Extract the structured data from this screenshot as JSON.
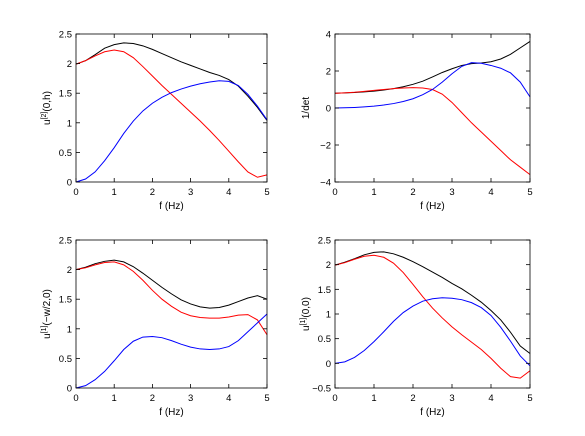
{
  "chart_data": [
    {
      "type": "line",
      "title": "",
      "xlabel": "f (Hz)",
      "ylabel": {
        "base": "u",
        "sup": "[2]",
        "rest": "(0,h)"
      },
      "xlim": [
        0,
        5
      ],
      "ylim": [
        0,
        2.5
      ],
      "xticks": [
        "0",
        "1",
        "2",
        "3",
        "4",
        "5"
      ],
      "yticks": [
        "0",
        "0.5",
        "1",
        "1.5",
        "2",
        "2.5"
      ],
      "grid": false,
      "series": [
        {
          "color": "#000000",
          "x": [
            0,
            0.25,
            0.5,
            0.75,
            1.0,
            1.25,
            1.5,
            1.75,
            2.0,
            2.25,
            2.5,
            2.75,
            3.0,
            3.25,
            3.5,
            3.75,
            4.0,
            4.25,
            4.5,
            4.75,
            5.0
          ],
          "y": [
            1.99,
            2.05,
            2.15,
            2.26,
            2.32,
            2.35,
            2.34,
            2.3,
            2.24,
            2.17,
            2.1,
            2.03,
            1.97,
            1.91,
            1.85,
            1.8,
            1.73,
            1.62,
            1.45,
            1.26,
            1.04
          ]
        },
        {
          "color": "#ff0000",
          "x": [
            0,
            0.25,
            0.5,
            0.75,
            1.0,
            1.25,
            1.5,
            1.75,
            2.0,
            2.25,
            2.5,
            2.75,
            3.0,
            3.25,
            3.5,
            3.75,
            4.0,
            4.25,
            4.5,
            4.75,
            5.0
          ],
          "y": [
            1.99,
            2.05,
            2.13,
            2.2,
            2.23,
            2.2,
            2.1,
            1.95,
            1.79,
            1.63,
            1.48,
            1.33,
            1.18,
            1.03,
            0.87,
            0.7,
            0.52,
            0.34,
            0.17,
            0.08,
            0.12
          ]
        },
        {
          "color": "#0000ff",
          "x": [
            0,
            0.25,
            0.5,
            0.75,
            1.0,
            1.25,
            1.5,
            1.75,
            2.0,
            2.25,
            2.5,
            2.75,
            3.0,
            3.25,
            3.5,
            3.75,
            4.0,
            4.25,
            4.5,
            4.75,
            5.0
          ],
          "y": [
            0.0,
            0.05,
            0.17,
            0.36,
            0.58,
            0.82,
            1.03,
            1.2,
            1.33,
            1.43,
            1.51,
            1.57,
            1.62,
            1.66,
            1.69,
            1.71,
            1.7,
            1.63,
            1.48,
            1.28,
            1.05
          ]
        }
      ]
    },
    {
      "type": "line",
      "title": "",
      "xlabel": "f (Hz)",
      "ylabel": {
        "base": "1/det",
        "sup": "",
        "rest": ""
      },
      "xlim": [
        0,
        5
      ],
      "ylim": [
        -4,
        4
      ],
      "xticks": [
        "0",
        "1",
        "2",
        "3",
        "4",
        "5"
      ],
      "yticks": [
        "−4",
        "−2",
        "0",
        "2",
        "4"
      ],
      "grid": false,
      "series": [
        {
          "color": "#000000",
          "x": [
            0,
            0.25,
            0.5,
            0.75,
            1.0,
            1.25,
            1.5,
            1.75,
            2.0,
            2.25,
            2.5,
            2.75,
            3.0,
            3.25,
            3.5,
            3.75,
            4.0,
            4.25,
            4.5,
            4.75,
            5.0
          ],
          "y": [
            0.8,
            0.82,
            0.84,
            0.87,
            0.91,
            0.97,
            1.05,
            1.15,
            1.28,
            1.45,
            1.68,
            1.92,
            2.12,
            2.3,
            2.4,
            2.43,
            2.5,
            2.65,
            2.9,
            3.25,
            3.6
          ]
        },
        {
          "color": "#ff0000",
          "x": [
            0,
            0.25,
            0.5,
            0.75,
            1.0,
            1.25,
            1.5,
            1.75,
            2.0,
            2.25,
            2.5,
            2.75,
            3.0,
            3.25,
            3.5,
            3.75,
            4.0,
            4.25,
            4.5,
            4.75,
            5.0
          ],
          "y": [
            0.8,
            0.82,
            0.85,
            0.9,
            0.95,
            1.0,
            1.05,
            1.08,
            1.1,
            1.08,
            1.0,
            0.75,
            0.3,
            -0.25,
            -0.8,
            -1.3,
            -1.8,
            -2.3,
            -2.8,
            -3.2,
            -3.6
          ]
        },
        {
          "color": "#0000ff",
          "x": [
            0,
            0.25,
            0.5,
            0.75,
            1.0,
            1.25,
            1.5,
            1.75,
            2.0,
            2.25,
            2.5,
            2.75,
            3.0,
            3.25,
            3.5,
            3.75,
            4.0,
            4.25,
            4.5,
            4.75,
            5.0
          ],
          "y": [
            0.0,
            0.01,
            0.03,
            0.06,
            0.1,
            0.16,
            0.24,
            0.35,
            0.5,
            0.72,
            1.0,
            1.4,
            1.85,
            2.25,
            2.45,
            2.42,
            2.3,
            2.15,
            1.9,
            1.4,
            0.6
          ]
        }
      ]
    },
    {
      "type": "line",
      "title": "",
      "xlabel": "f (Hz)",
      "ylabel": {
        "base": "u",
        "sup": "[1]",
        "rest": "(−w/2,0)"
      },
      "xlim": [
        0,
        5
      ],
      "ylim": [
        0,
        2.5
      ],
      "xticks": [
        "0",
        "1",
        "2",
        "3",
        "4",
        "5"
      ],
      "yticks": [
        "0",
        "0.5",
        "1",
        "1.5",
        "2",
        "2.5"
      ],
      "grid": false,
      "series": [
        {
          "color": "#000000",
          "x": [
            0,
            0.25,
            0.5,
            0.75,
            1.0,
            1.25,
            1.5,
            1.75,
            2.0,
            2.25,
            2.5,
            2.75,
            3.0,
            3.25,
            3.5,
            3.75,
            4.0,
            4.25,
            4.5,
            4.75,
            5.0
          ],
          "y": [
            2.0,
            2.04,
            2.1,
            2.14,
            2.16,
            2.13,
            2.05,
            1.94,
            1.82,
            1.7,
            1.59,
            1.49,
            1.42,
            1.37,
            1.35,
            1.36,
            1.4,
            1.46,
            1.52,
            1.56,
            1.5
          ]
        },
        {
          "color": "#ff0000",
          "x": [
            0,
            0.25,
            0.5,
            0.75,
            1.0,
            1.25,
            1.5,
            1.75,
            2.0,
            2.25,
            2.5,
            2.75,
            3.0,
            3.25,
            3.5,
            3.75,
            4.0,
            4.25,
            4.5,
            4.75,
            5.0
          ],
          "y": [
            2.0,
            2.03,
            2.08,
            2.12,
            2.13,
            2.08,
            1.97,
            1.82,
            1.65,
            1.5,
            1.38,
            1.28,
            1.22,
            1.19,
            1.18,
            1.18,
            1.2,
            1.23,
            1.24,
            1.15,
            0.9
          ]
        },
        {
          "color": "#0000ff",
          "x": [
            0,
            0.25,
            0.5,
            0.75,
            1.0,
            1.25,
            1.5,
            1.75,
            2.0,
            2.25,
            2.5,
            2.75,
            3.0,
            3.25,
            3.5,
            3.75,
            4.0,
            4.25,
            4.5,
            4.75,
            5.0
          ],
          "y": [
            0.0,
            0.04,
            0.14,
            0.28,
            0.46,
            0.65,
            0.79,
            0.86,
            0.87,
            0.85,
            0.8,
            0.74,
            0.69,
            0.66,
            0.65,
            0.66,
            0.7,
            0.8,
            0.95,
            1.1,
            1.25
          ]
        }
      ]
    },
    {
      "type": "line",
      "title": "",
      "xlabel": "f (Hz)",
      "ylabel": {
        "base": "u",
        "sup": "[1]",
        "rest": "(0,0)"
      },
      "xlim": [
        0,
        5
      ],
      "ylim": [
        -0.5,
        2.5
      ],
      "xticks": [
        "0",
        "1",
        "2",
        "3",
        "4",
        "5"
      ],
      "yticks": [
        "−0.5",
        "0",
        "0.5",
        "1",
        "1.5",
        "2",
        "2.5"
      ],
      "grid": false,
      "series": [
        {
          "color": "#000000",
          "x": [
            0,
            0.25,
            0.5,
            0.75,
            1.0,
            1.25,
            1.5,
            1.75,
            2.0,
            2.25,
            2.5,
            2.75,
            3.0,
            3.25,
            3.5,
            3.75,
            4.0,
            4.25,
            4.5,
            4.75,
            5.0
          ],
          "y": [
            1.99,
            2.05,
            2.12,
            2.2,
            2.25,
            2.26,
            2.22,
            2.15,
            2.06,
            1.96,
            1.85,
            1.74,
            1.62,
            1.51,
            1.38,
            1.24,
            1.07,
            0.88,
            0.63,
            0.35,
            0.2
          ]
        },
        {
          "color": "#ff0000",
          "x": [
            0,
            0.25,
            0.5,
            0.75,
            1.0,
            1.25,
            1.5,
            1.75,
            2.0,
            2.25,
            2.5,
            2.75,
            3.0,
            3.25,
            3.5,
            3.75,
            4.0,
            4.25,
            4.5,
            4.75,
            5.0
          ],
          "y": [
            1.99,
            2.04,
            2.11,
            2.17,
            2.19,
            2.15,
            2.03,
            1.84,
            1.6,
            1.35,
            1.12,
            0.92,
            0.74,
            0.58,
            0.43,
            0.28,
            0.1,
            -0.1,
            -0.27,
            -0.3,
            -0.15
          ]
        },
        {
          "color": "#0000ff",
          "x": [
            0,
            0.25,
            0.5,
            0.75,
            1.0,
            1.25,
            1.5,
            1.75,
            2.0,
            2.25,
            2.5,
            2.75,
            3.0,
            3.25,
            3.5,
            3.75,
            4.0,
            4.25,
            4.5,
            4.75,
            5.0
          ],
          "y": [
            0.0,
            0.03,
            0.12,
            0.26,
            0.44,
            0.64,
            0.85,
            1.03,
            1.16,
            1.26,
            1.31,
            1.33,
            1.32,
            1.29,
            1.23,
            1.13,
            0.97,
            0.73,
            0.45,
            0.15,
            -0.05
          ]
        }
      ]
    }
  ]
}
